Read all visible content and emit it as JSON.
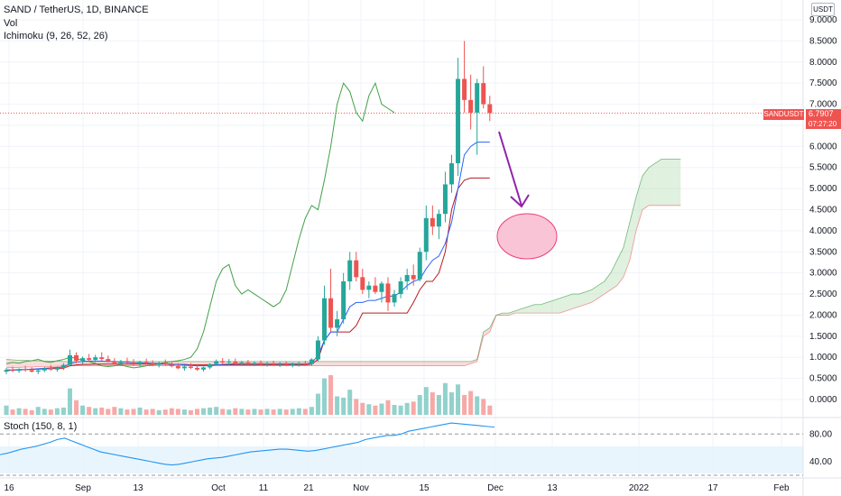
{
  "header": {
    "title": "SAND / TetherUS, 1D, BINANCE",
    "vol": "Vol",
    "ichimoku": "Ichimoku (9, 26, 52, 26)",
    "currency": "USDT"
  },
  "last_price": {
    "symbol": "SANDUSDT",
    "price": "6.7907",
    "countdown": "07:27:20",
    "value": 6.7907
  },
  "colors": {
    "up": "#26a69a",
    "down": "#ef5350",
    "conversion": "#2962ff",
    "base": "#b71c1c",
    "lagging": "#43a047",
    "cloud_bull": "#a5d6a7",
    "cloud_bear": "#ef9a9a",
    "stoch": "#2196f3",
    "arrow": "#8e24aa",
    "ellipse_fill": "#f8bbd0",
    "ellipse_stroke": "#e91e63"
  },
  "chart_data": {
    "type": "candlestick",
    "title": "SAND / TetherUS, 1D, BINANCE",
    "x_ticks": [
      "16",
      "Sep",
      "13",
      "Oct",
      "11",
      "21",
      "Nov",
      "15",
      "Dec",
      "13",
      "2022",
      "17",
      "Feb"
    ],
    "y_ticks": [
      "9.0000",
      "8.5000",
      "8.0000",
      "7.5000",
      "7.0000",
      "6.5000",
      "6.0000",
      "5.5000",
      "5.0000",
      "4.5000",
      "4.0000",
      "3.5000",
      "3.0000",
      "2.5000",
      "2.0000",
      "1.5000",
      "1.0000",
      "0.5000",
      "0.0000"
    ],
    "ylim": [
      0,
      9.2
    ],
    "candles": [
      [
        0.66,
        0.75,
        0.6,
        0.7
      ],
      [
        0.7,
        0.78,
        0.65,
        0.68
      ],
      [
        0.68,
        0.74,
        0.63,
        0.72
      ],
      [
        0.72,
        0.8,
        0.66,
        0.7
      ],
      [
        0.7,
        0.76,
        0.64,
        0.66
      ],
      [
        0.66,
        0.72,
        0.6,
        0.69
      ],
      [
        0.69,
        0.77,
        0.65,
        0.74
      ],
      [
        0.74,
        0.82,
        0.68,
        0.71
      ],
      [
        0.71,
        0.78,
        0.66,
        0.75
      ],
      [
        0.75,
        0.86,
        0.7,
        0.82
      ],
      [
        0.82,
        1.18,
        0.78,
        1.05
      ],
      [
        1.05,
        1.12,
        0.86,
        0.92
      ],
      [
        0.92,
        1.02,
        0.84,
        0.98
      ],
      [
        0.98,
        1.08,
        0.9,
        0.94
      ],
      [
        0.94,
        1.06,
        0.88,
        1.0
      ],
      [
        1.0,
        1.12,
        0.92,
        0.96
      ],
      [
        0.96,
        1.04,
        0.88,
        0.9
      ],
      [
        0.9,
        0.98,
        0.82,
        0.86
      ],
      [
        0.86,
        0.94,
        0.8,
        0.91
      ],
      [
        0.91,
        0.99,
        0.84,
        0.88
      ],
      [
        0.88,
        0.96,
        0.8,
        0.84
      ],
      [
        0.84,
        0.92,
        0.78,
        0.89
      ],
      [
        0.89,
        0.97,
        0.82,
        0.86
      ],
      [
        0.86,
        0.93,
        0.79,
        0.82
      ],
      [
        0.82,
        0.9,
        0.76,
        0.87
      ],
      [
        0.87,
        0.95,
        0.8,
        0.83
      ],
      [
        0.83,
        0.9,
        0.76,
        0.79
      ],
      [
        0.79,
        0.86,
        0.72,
        0.74
      ],
      [
        0.74,
        0.81,
        0.68,
        0.78
      ],
      [
        0.78,
        0.86,
        0.72,
        0.75
      ],
      [
        0.75,
        0.82,
        0.68,
        0.71
      ],
      [
        0.71,
        0.78,
        0.66,
        0.76
      ],
      [
        0.76,
        0.86,
        0.72,
        0.84
      ],
      [
        0.84,
        0.95,
        0.8,
        0.91
      ],
      [
        0.91,
        0.98,
        0.84,
        0.88
      ],
      [
        0.88,
        0.96,
        0.82,
        0.9
      ],
      [
        0.9,
        0.97,
        0.84,
        0.86
      ],
      [
        0.86,
        0.92,
        0.8,
        0.88
      ],
      [
        0.88,
        0.94,
        0.82,
        0.85
      ],
      [
        0.85,
        0.91,
        0.79,
        0.87
      ],
      [
        0.87,
        0.93,
        0.81,
        0.84
      ],
      [
        0.84,
        0.9,
        0.78,
        0.86
      ],
      [
        0.86,
        0.92,
        0.8,
        0.83
      ],
      [
        0.83,
        0.89,
        0.77,
        0.85
      ],
      [
        0.85,
        0.91,
        0.79,
        0.82
      ],
      [
        0.82,
        0.88,
        0.76,
        0.84
      ],
      [
        0.84,
        0.9,
        0.78,
        0.86
      ],
      [
        0.86,
        0.92,
        0.8,
        0.84
      ],
      [
        0.84,
        0.98,
        0.8,
        0.95
      ],
      [
        0.95,
        1.5,
        0.9,
        1.4
      ],
      [
        1.4,
        2.7,
        1.3,
        2.4
      ],
      [
        2.4,
        3.1,
        1.6,
        1.7
      ],
      [
        1.7,
        2.1,
        1.5,
        1.9
      ],
      [
        1.9,
        3.0,
        1.8,
        2.8
      ],
      [
        2.8,
        3.5,
        2.6,
        3.3
      ],
      [
        3.3,
        3.5,
        2.8,
        2.9
      ],
      [
        2.9,
        3.1,
        2.5,
        2.6
      ],
      [
        2.6,
        2.8,
        2.4,
        2.7
      ],
      [
        2.7,
        2.9,
        2.5,
        2.55
      ],
      [
        2.55,
        2.8,
        2.3,
        2.75
      ],
      [
        2.75,
        2.9,
        2.1,
        2.3
      ],
      [
        2.3,
        2.6,
        2.2,
        2.5
      ],
      [
        2.5,
        2.9,
        2.4,
        2.8
      ],
      [
        2.8,
        3.1,
        2.6,
        2.95
      ],
      [
        2.95,
        3.2,
        2.7,
        2.85
      ],
      [
        2.85,
        3.6,
        2.8,
        3.5
      ],
      [
        3.5,
        4.6,
        3.3,
        4.3
      ],
      [
        4.3,
        4.6,
        3.9,
        4.1
      ],
      [
        4.1,
        4.5,
        3.8,
        4.4
      ],
      [
        4.4,
        5.4,
        4.2,
        5.1
      ],
      [
        5.1,
        5.8,
        4.9,
        5.6
      ],
      [
        5.6,
        8.1,
        5.3,
        7.6
      ],
      [
        7.6,
        8.5,
        6.8,
        7.1
      ],
      [
        7.1,
        7.7,
        6.4,
        6.8
      ],
      [
        6.8,
        7.6,
        5.8,
        7.5
      ],
      [
        7.5,
        7.9,
        6.9,
        7.0
      ],
      [
        7.0,
        7.2,
        6.6,
        6.7907
      ]
    ],
    "volume": [
      14,
      8,
      10,
      9,
      7,
      12,
      9,
      8,
      10,
      11,
      40,
      22,
      14,
      12,
      10,
      11,
      9,
      12,
      10,
      8,
      9,
      11,
      8,
      9,
      7,
      8,
      10,
      9,
      8,
      7,
      9,
      10,
      11,
      12,
      9,
      8,
      10,
      9,
      8,
      9,
      8,
      9,
      8,
      9,
      8,
      9,
      10,
      9,
      12,
      32,
      55,
      60,
      28,
      26,
      38,
      24,
      18,
      16,
      14,
      17,
      22,
      15,
      14,
      18,
      20,
      30,
      42,
      34,
      30,
      48,
      34,
      46,
      30,
      36,
      28,
      24,
      14
    ],
    "conversion_line": [
      0.68,
      0.7,
      0.7,
      0.71,
      0.72,
      0.73,
      0.74,
      0.75,
      0.76,
      0.77,
      0.85,
      0.89,
      0.9,
      0.91,
      0.91,
      0.91,
      0.9,
      0.9,
      0.89,
      0.88,
      0.87,
      0.87,
      0.86,
      0.86,
      0.85,
      0.85,
      0.84,
      0.83,
      0.82,
      0.81,
      0.8,
      0.8,
      0.8,
      0.82,
      0.83,
      0.84,
      0.85,
      0.85,
      0.85,
      0.85,
      0.85,
      0.85,
      0.85,
      0.85,
      0.85,
      0.85,
      0.85,
      0.85,
      0.86,
      1.05,
      1.4,
      1.6,
      1.6,
      1.9,
      2.2,
      2.3,
      2.3,
      2.35,
      2.35,
      2.4,
      2.45,
      2.45,
      2.55,
      2.7,
      2.8,
      2.85,
      3.1,
      3.3,
      3.4,
      3.7,
      4.2,
      5.0,
      5.8,
      6.0,
      6.1,
      6.1,
      6.1
    ],
    "base_line": [
      0.7,
      0.7,
      0.71,
      0.71,
      0.72,
      0.72,
      0.73,
      0.73,
      0.74,
      0.74,
      0.8,
      0.82,
      0.83,
      0.83,
      0.84,
      0.84,
      0.84,
      0.84,
      0.84,
      0.84,
      0.84,
      0.84,
      0.84,
      0.84,
      0.84,
      0.84,
      0.83,
      0.83,
      0.83,
      0.82,
      0.82,
      0.82,
      0.82,
      0.82,
      0.82,
      0.82,
      0.82,
      0.82,
      0.82,
      0.82,
      0.82,
      0.82,
      0.82,
      0.82,
      0.82,
      0.82,
      0.82,
      0.82,
      0.84,
      0.95,
      1.4,
      1.6,
      1.6,
      1.6,
      1.6,
      1.75,
      2.05,
      2.05,
      2.05,
      2.05,
      2.05,
      2.05,
      2.05,
      2.05,
      2.3,
      2.6,
      2.8,
      2.8,
      3.0,
      3.5,
      4.5,
      5.0,
      5.2,
      5.25,
      5.25,
      5.25,
      5.25
    ],
    "lagging_span": [
      0.85,
      0.88,
      0.86,
      0.9,
      0.92,
      0.95,
      0.9,
      0.88,
      0.92,
      0.95,
      1.0,
      0.98,
      0.92,
      0.9,
      0.85,
      0.8,
      0.78,
      0.8,
      0.82,
      0.78,
      0.75,
      0.77,
      0.8,
      0.82,
      0.85,
      0.88,
      0.9,
      0.92,
      0.95,
      1.0,
      1.2,
      1.6,
      2.2,
      2.8,
      3.1,
      3.2,
      2.7,
      2.5,
      2.6,
      2.5,
      2.4,
      2.3,
      2.2,
      2.3,
      2.6,
      3.2,
      3.8,
      4.3,
      4.6,
      4.5,
      5.2,
      6.0,
      7.0,
      7.5,
      7.3,
      6.8,
      6.6,
      7.2,
      7.5,
      7.0,
      6.9,
      6.8
    ],
    "cloud": [
      [
        0.75,
        0.95
      ],
      [
        0.76,
        0.94
      ],
      [
        0.76,
        0.93
      ],
      [
        0.77,
        0.93
      ],
      [
        0.77,
        0.92
      ],
      [
        0.78,
        0.92
      ],
      [
        0.78,
        0.91
      ],
      [
        0.78,
        0.91
      ],
      [
        0.79,
        0.91
      ],
      [
        0.79,
        0.9
      ],
      [
        0.8,
        0.9
      ],
      [
        0.8,
        0.9
      ],
      [
        0.8,
        0.9
      ],
      [
        0.8,
        0.9
      ],
      [
        0.8,
        0.9
      ],
      [
        0.8,
        0.9
      ],
      [
        0.8,
        0.9
      ],
      [
        0.8,
        0.9
      ],
      [
        0.8,
        0.9
      ],
      [
        0.8,
        0.9
      ],
      [
        0.8,
        0.9
      ],
      [
        0.8,
        0.9
      ],
      [
        0.8,
        0.9
      ],
      [
        0.8,
        0.9
      ],
      [
        0.8,
        0.9
      ],
      [
        0.8,
        0.9
      ],
      [
        0.8,
        0.9
      ],
      [
        0.8,
        0.9
      ],
      [
        0.8,
        0.9
      ],
      [
        0.8,
        0.9
      ],
      [
        0.8,
        0.9
      ],
      [
        0.8,
        0.9
      ],
      [
        0.8,
        0.9
      ],
      [
        0.8,
        0.9
      ],
      [
        0.8,
        0.9
      ],
      [
        0.8,
        0.9
      ],
      [
        0.8,
        0.9
      ],
      [
        0.8,
        0.9
      ],
      [
        0.8,
        0.9
      ],
      [
        0.8,
        0.9
      ],
      [
        0.8,
        0.9
      ],
      [
        0.8,
        0.9
      ],
      [
        0.8,
        0.9
      ],
      [
        0.8,
        0.9
      ],
      [
        0.8,
        0.9
      ],
      [
        0.8,
        0.9
      ],
      [
        0.8,
        0.9
      ],
      [
        0.8,
        0.9
      ],
      [
        0.8,
        0.9
      ],
      [
        0.8,
        0.9
      ],
      [
        0.8,
        0.9
      ],
      [
        0.8,
        0.9
      ],
      [
        0.8,
        0.9
      ],
      [
        0.8,
        0.9
      ],
      [
        0.8,
        0.9
      ],
      [
        0.8,
        0.9
      ],
      [
        0.8,
        0.9
      ],
      [
        0.8,
        0.9
      ],
      [
        0.8,
        0.9
      ],
      [
        0.8,
        0.9
      ],
      [
        0.8,
        0.9
      ],
      [
        0.8,
        0.9
      ],
      [
        0.8,
        0.9
      ],
      [
        0.8,
        0.9
      ],
      [
        0.8,
        0.9
      ],
      [
        0.8,
        0.9
      ],
      [
        0.8,
        0.9
      ],
      [
        0.8,
        0.9
      ],
      [
        0.8,
        0.9
      ],
      [
        0.8,
        0.9
      ],
      [
        0.8,
        0.9
      ],
      [
        0.8,
        0.9
      ],
      [
        0.8,
        0.9
      ],
      [
        0.85,
        0.9
      ],
      [
        0.9,
        0.95
      ],
      [
        1.5,
        1.6
      ],
      [
        1.6,
        1.7
      ],
      [
        2.0,
        2.0
      ],
      [
        2.0,
        2.05
      ],
      [
        2.0,
        2.05
      ],
      [
        2.05,
        2.1
      ],
      [
        2.05,
        2.15
      ],
      [
        2.05,
        2.2
      ],
      [
        2.05,
        2.25
      ],
      [
        2.05,
        2.25
      ],
      [
        2.05,
        2.3
      ],
      [
        2.05,
        2.35
      ],
      [
        2.05,
        2.4
      ],
      [
        2.1,
        2.45
      ],
      [
        2.15,
        2.5
      ],
      [
        2.2,
        2.5
      ],
      [
        2.25,
        2.55
      ],
      [
        2.3,
        2.6
      ],
      [
        2.4,
        2.7
      ],
      [
        2.5,
        2.8
      ],
      [
        2.6,
        3.0
      ],
      [
        2.7,
        3.3
      ],
      [
        2.9,
        3.6
      ],
      [
        3.3,
        4.2
      ],
      [
        4.0,
        4.8
      ],
      [
        4.5,
        5.3
      ],
      [
        4.6,
        5.5
      ],
      [
        4.6,
        5.6
      ],
      [
        4.6,
        5.7
      ],
      [
        4.6,
        5.7
      ],
      [
        4.6,
        5.7
      ],
      [
        4.6,
        5.7
      ]
    ],
    "stoch": {
      "label": "Stoch (150, 8, 1)",
      "ticks": [
        "80.00",
        "40.00"
      ],
      "ylim": [
        20,
        100
      ],
      "upper_band": 80,
      "lower_band": 20,
      "values": [
        50,
        52,
        55,
        58,
        60,
        62,
        65,
        68,
        72,
        74,
        70,
        66,
        62,
        58,
        54,
        52,
        50,
        48,
        46,
        44,
        42,
        40,
        38,
        36,
        35,
        36,
        38,
        40,
        42,
        44,
        45,
        46,
        48,
        50,
        52,
        54,
        55,
        56,
        57,
        58,
        58,
        57,
        56,
        55,
        56,
        58,
        60,
        62,
        64,
        66,
        68,
        72,
        74,
        76,
        78,
        78,
        80,
        84,
        86,
        88,
        90,
        92,
        94,
        96,
        95,
        94,
        93,
        92,
        91,
        90
      ]
    }
  },
  "annotations": {
    "note": ""
  }
}
